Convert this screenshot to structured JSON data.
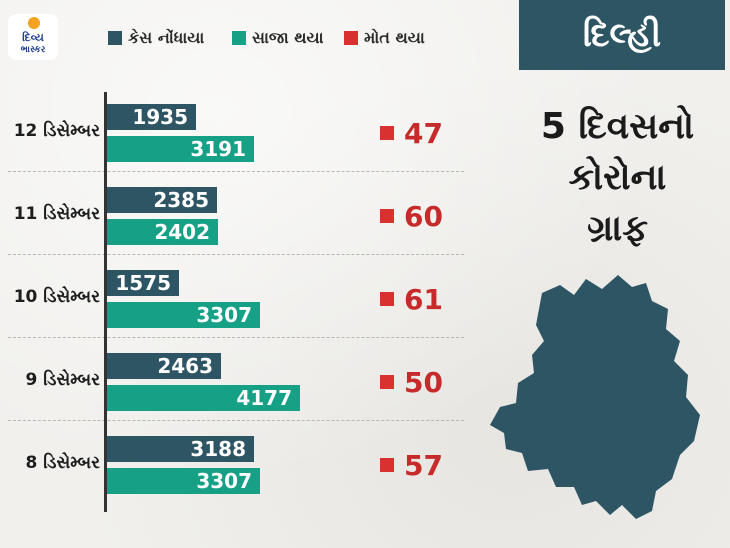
{
  "brand": {
    "logo_line1": "દિવ્ય",
    "logo_line2": "ભાસ્કર"
  },
  "legend": [
    {
      "label": "કેસ નોંધાયા",
      "color": "#2d5564"
    },
    {
      "label": "સાજા થયા",
      "color": "#16a085"
    },
    {
      "label": "મોત થયા",
      "color": "#d9312f"
    }
  ],
  "header": {
    "city": "દિલ્હી",
    "title_lines": [
      "5 દિવસનો",
      "કોરોના",
      "ગ્રાફ"
    ]
  },
  "map_icon": "delhi-map-silhouette",
  "colors": {
    "cases": "#2d5564",
    "recovered": "#16a085",
    "deaths": "#d9312f",
    "death_text": "#c62a2a"
  },
  "chart_data": {
    "type": "bar",
    "orientation": "horizontal",
    "categories": [
      "12 ડિસેમ્બર",
      "11 ડિસેમ્બર",
      "10 ડિસેમ્બર",
      "9 ડિસેમ્બર",
      "8 ડિસેમ્બર"
    ],
    "series": [
      {
        "name": "કેસ નોંધાયા",
        "values": [
          1935,
          2385,
          1575,
          2463,
          3188
        ]
      },
      {
        "name": "સાજા થયા",
        "values": [
          3191,
          2402,
          3307,
          4177,
          3307
        ]
      },
      {
        "name": "મોત થયા",
        "values": [
          47,
          60,
          61,
          50,
          57
        ]
      }
    ],
    "legend_position": "top",
    "grid": false
  }
}
